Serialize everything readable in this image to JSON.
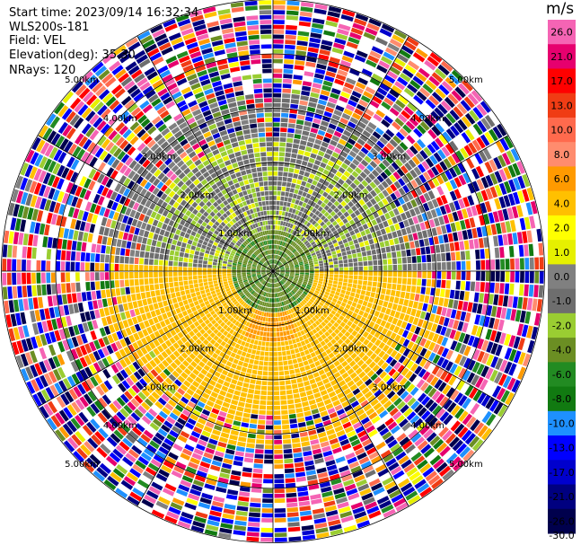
{
  "header": {
    "start_time": "Start time: 2023/09/14 16:32:34",
    "instrument": "WLS200s-181",
    "field": "Field: VEL",
    "elevation": "Elevation(deg): 35.30",
    "nrays": "NRays: 120"
  },
  "colorbar": {
    "unit": "m/s",
    "ticks": [
      "26.0",
      "21.0",
      "17.0",
      "13.0",
      "10.0",
      "8.0",
      "6.0",
      "4.0",
      "2.0",
      "1.0",
      "0.0",
      "-1.0",
      "-2.0",
      "-4.0",
      "-6.0",
      "-8.0",
      "-10.0",
      "-13.0",
      "-17.0",
      "-21.0",
      "-26.0",
      "-30.0"
    ],
    "colors": [
      "#f564b4",
      "#e6006e",
      "#ff0000",
      "#f03c14",
      "#ff6a4d",
      "#ff8c6e",
      "#ff9a00",
      "#ffc000",
      "#ffff00",
      "#e6f000",
      "#808080",
      "#6e6e6e",
      "#9acd32",
      "#6b8e23",
      "#228b22",
      "#117a11",
      "#1e90ff",
      "#0000ff",
      "#0000cd",
      "#000080",
      "#00004d"
    ]
  },
  "chart_data": {
    "type": "ppi",
    "field": "VEL",
    "unit": "m/s",
    "nrays": 120,
    "elevation_deg": 35.3,
    "range_rings_km": [
      1,
      2,
      3,
      4,
      5
    ],
    "range_ring_labels": [
      "1.00km",
      "2.00km",
      "3.00km",
      "4.00km",
      "5.00km"
    ],
    "color_levels": [
      -30,
      -26,
      -21,
      -17,
      -13,
      -10,
      -8,
      -6,
      -4,
      -2,
      -1,
      0,
      1,
      2,
      4,
      6,
      8,
      10,
      13,
      17,
      21,
      26
    ],
    "regions": [
      {
        "range_km": [
          0,
          0.7
        ],
        "sector": "all",
        "velocity": -6
      },
      {
        "range_km": [
          0.7,
          2.4
        ],
        "sector": "north",
        "velocity": -3
      },
      {
        "range_km": [
          0.5,
          2.6
        ],
        "sector": "south",
        "velocity": 3
      },
      {
        "range_km": [
          3.0,
          6.0
        ],
        "sector": "all",
        "velocity": "noise"
      }
    ]
  }
}
